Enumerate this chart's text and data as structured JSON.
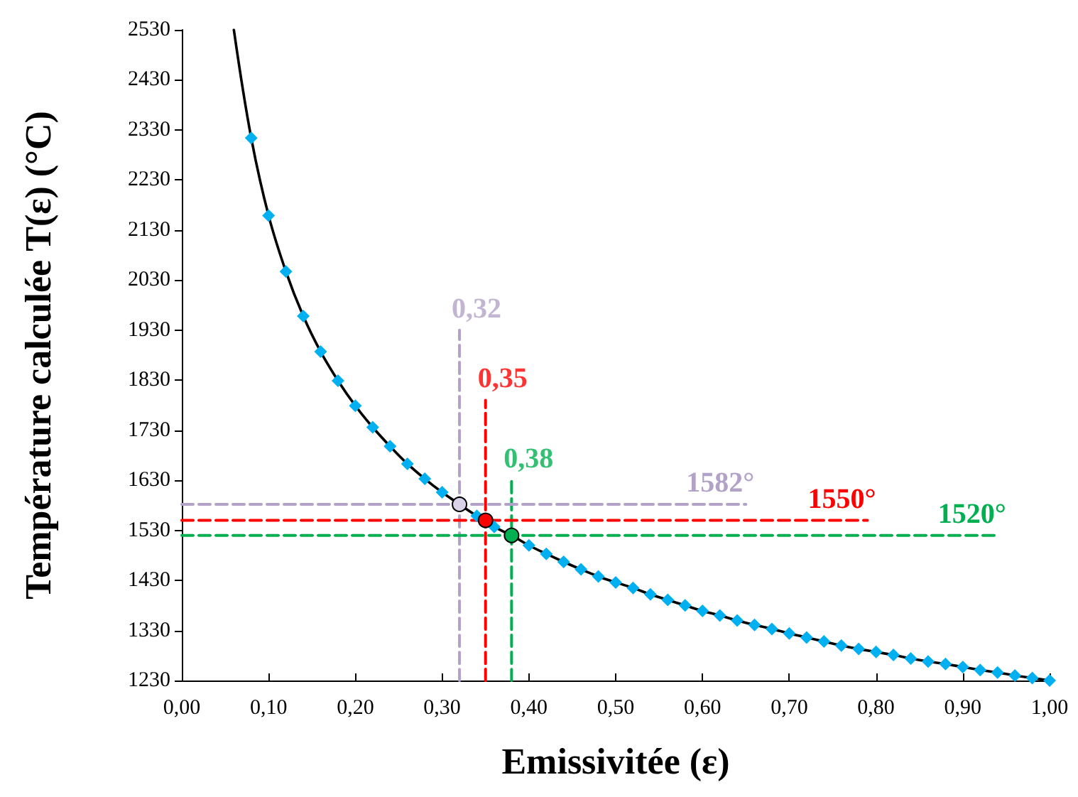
{
  "chart_data": {
    "type": "line",
    "xlabel": "Emissivitée (ε)",
    "ylabel": "Température calculée T(ε) (°C)",
    "xlim": [
      0,
      1
    ],
    "ylim": [
      1230,
      2530
    ],
    "xticks": [
      {
        "value": 0,
        "label": "0,00"
      },
      {
        "value": 0.1,
        "label": "0,10"
      },
      {
        "value": 0.2,
        "label": "0,20"
      },
      {
        "value": 0.3,
        "label": "0,30"
      },
      {
        "value": 0.4,
        "label": "0,40"
      },
      {
        "value": 0.5,
        "label": "0,50"
      },
      {
        "value": 0.6,
        "label": "0,60"
      },
      {
        "value": 0.7,
        "label": "0,70"
      },
      {
        "value": 0.8,
        "label": "0,80"
      },
      {
        "value": 0.9,
        "label": "0,90"
      },
      {
        "value": 1,
        "label": "1,00"
      }
    ],
    "yticks": [
      1230,
      1330,
      1430,
      1530,
      1630,
      1730,
      1830,
      1930,
      2030,
      2130,
      2230,
      2330,
      2430,
      2530
    ],
    "grid": false,
    "annotations": [
      {
        "text": "0,32",
        "x": 0.32,
        "y": 1930
      },
      {
        "text": "0,35",
        "x": 0.35,
        "y": 1790
      },
      {
        "text": "0,38",
        "x": 0.38,
        "y": 1630
      }
    ],
    "series": [
      {
        "color": "#000000",
        "marker": "none",
        "line_style": "solid",
        "x": [
          0.06,
          0.08,
          0.1,
          0.12,
          0.14,
          0.16,
          0.18,
          0.2,
          0.22,
          0.24,
          0.26,
          0.28,
          0.3,
          0.32,
          0.34,
          0.35,
          0.36,
          0.38,
          0.4,
          0.42,
          0.44,
          0.46,
          0.48,
          0.5,
          0.52,
          0.54,
          0.56,
          0.58,
          0.6,
          0.62,
          0.64,
          0.66,
          0.68,
          0.7,
          0.72,
          0.74,
          0.76,
          0.78,
          0.8,
          0.82,
          0.84,
          0.86,
          0.88,
          0.9,
          0.92,
          0.94,
          0.96,
          0.98,
          1
        ],
        "values": [
          2530,
          2314,
          2159,
          2047,
          1958,
          1887,
          1829,
          1779,
          1736,
          1698,
          1663,
          1633,
          1606,
          1582,
          1559,
          1550,
          1537,
          1520,
          1500,
          1483,
          1467,
          1452,
          1438,
          1426,
          1415,
          1402,
          1391,
          1380,
          1369,
          1360,
          1350,
          1341,
          1333,
          1324,
          1316,
          1308,
          1300,
          1293,
          1287,
          1281,
          1274,
          1268,
          1263,
          1257,
          1251,
          1246,
          1240,
          1235,
          1230
        ]
      },
      {
        "type": "scatter",
        "color": "#00b0f0",
        "marker": "diamond",
        "x": [
          0.08,
          0.1,
          0.12,
          0.14,
          0.16,
          0.18,
          0.2,
          0.22,
          0.24,
          0.26,
          0.28,
          0.3,
          0.32,
          0.34,
          0.36,
          0.38,
          0.4,
          0.42,
          0.44,
          0.46,
          0.48,
          0.5,
          0.52,
          0.54,
          0.56,
          0.58,
          0.6,
          0.62,
          0.64,
          0.66,
          0.68,
          0.7,
          0.72,
          0.74,
          0.76,
          0.78,
          0.8,
          0.82,
          0.84,
          0.86,
          0.88,
          0.9,
          0.92,
          0.94,
          0.96,
          0.98,
          1
        ],
        "values": [
          2314,
          2159,
          2047,
          1958,
          1887,
          1829,
          1779,
          1736,
          1698,
          1663,
          1633,
          1606,
          null,
          1559,
          1537,
          null,
          1500,
          1483,
          1467,
          1452,
          1438,
          1426,
          1415,
          1402,
          1391,
          1380,
          1369,
          1360,
          1350,
          1341,
          1333,
          1324,
          1316,
          1308,
          1300,
          1293,
          1287,
          1281,
          1274,
          1268,
          1263,
          1257,
          1251,
          1246,
          1240,
          1235,
          1230
        ]
      },
      {
        "type": "line",
        "color": "#b3a2c7",
        "marker": "none",
        "line_style": "dashed",
        "x": [
          0.32,
          0.32
        ],
        "values": [
          1230,
          1930
        ]
      },
      {
        "type": "line",
        "color": "#ff0000",
        "marker": "none",
        "line_style": "dashed",
        "x": [
          0.35,
          0.35
        ],
        "values": [
          1230,
          1790
        ]
      },
      {
        "type": "line",
        "color": "#00b050",
        "marker": "none",
        "line_style": "dashed",
        "x": [
          0.38,
          0.38
        ],
        "values": [
          1230,
          1630
        ]
      },
      {
        "type": "line",
        "color": "#b3a2c7",
        "marker": "none",
        "line_style": "dashed",
        "x": [
          0,
          0.65
        ],
        "values": [
          1582,
          1582
        ],
        "value_labels": [
          null,
          "1582°"
        ]
      },
      {
        "type": "line",
        "color": "#ff0000",
        "marker": "none",
        "line_style": "dashed",
        "x": [
          0,
          0.79
        ],
        "values": [
          1550,
          1550
        ],
        "value_labels": [
          null,
          "1550°"
        ]
      },
      {
        "type": "line",
        "color": "#00b050",
        "marker": "none",
        "line_style": "dashed",
        "x": [
          0,
          0.94
        ],
        "values": [
          1520,
          1520
        ],
        "value_labels": [
          null,
          "1520°"
        ]
      },
      {
        "type": "scatter",
        "color": "#d9d2e9",
        "marker": "circle",
        "x": [
          0.32
        ],
        "values": [
          1582
        ]
      },
      {
        "type": "scatter",
        "color": "#ff0000",
        "marker": "circle",
        "x": [
          0.35
        ],
        "values": [
          1550
        ]
      },
      {
        "type": "scatter",
        "color": "#00b050",
        "marker": "circle",
        "x": [
          0.38
        ],
        "values": [
          1520
        ]
      }
    ]
  }
}
